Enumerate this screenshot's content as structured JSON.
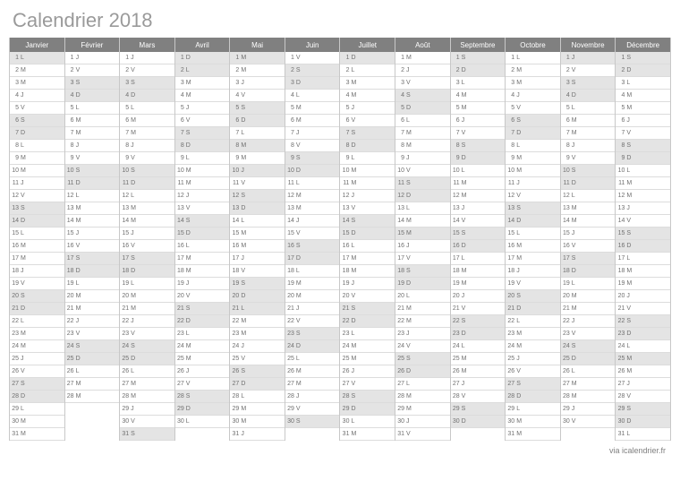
{
  "title": "Calendrier 2018",
  "footer": "via icalendrier.fr",
  "colors": {
    "title": "#9a9a9a",
    "header_bg": "#808080",
    "header_fg": "#ffffff",
    "cell_border": "#dcdcdc",
    "cell_bg": "#ffffff",
    "cell_shaded": "#e4e4e4",
    "text": "#606060"
  },
  "day_letters": {
    "1": "L",
    "2": "M",
    "3": "M",
    "4": "J",
    "5": "V",
    "6": "S",
    "0": "D"
  },
  "months": [
    {
      "name": "Janvier",
      "days": 31,
      "first_dow": 1,
      "holidays": [
        1
      ]
    },
    {
      "name": "Février",
      "days": 28,
      "first_dow": 4,
      "holidays": []
    },
    {
      "name": "Mars",
      "days": 31,
      "first_dow": 4,
      "holidays": []
    },
    {
      "name": "Avril",
      "days": 30,
      "first_dow": 0,
      "holidays": [
        2
      ]
    },
    {
      "name": "Mai",
      "days": 31,
      "first_dow": 2,
      "holidays": [
        1,
        8,
        10,
        21
      ]
    },
    {
      "name": "Juin",
      "days": 30,
      "first_dow": 5,
      "holidays": []
    },
    {
      "name": "Juillet",
      "days": 31,
      "first_dow": 0,
      "holidays": [
        14
      ]
    },
    {
      "name": "Août",
      "days": 31,
      "first_dow": 3,
      "holidays": [
        15
      ]
    },
    {
      "name": "Septembre",
      "days": 30,
      "first_dow": 6,
      "holidays": []
    },
    {
      "name": "Octobre",
      "days": 31,
      "first_dow": 1,
      "holidays": []
    },
    {
      "name": "Novembre",
      "days": 30,
      "first_dow": 4,
      "holidays": [
        1,
        11
      ]
    },
    {
      "name": "Décembre",
      "days": 31,
      "first_dow": 6,
      "holidays": [
        25
      ]
    }
  ]
}
